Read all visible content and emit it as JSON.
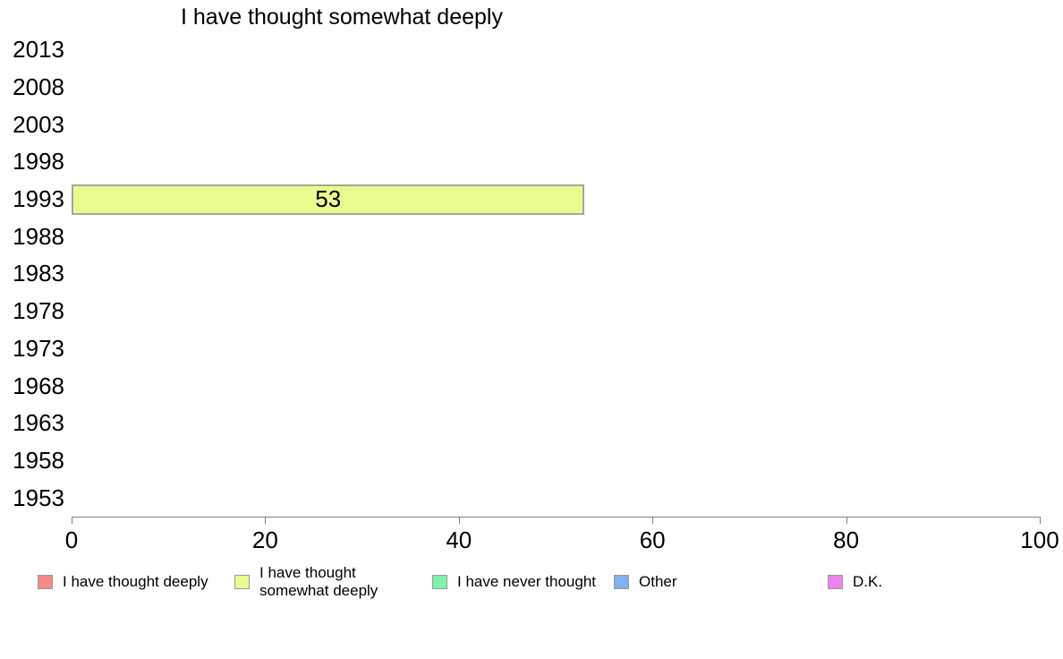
{
  "chart_data": {
    "type": "bar",
    "orientation": "horizontal",
    "title": "I have thought somewhat deeply",
    "categories": [
      "2013",
      "2008",
      "2003",
      "1998",
      "1993",
      "1988",
      "1983",
      "1978",
      "1973",
      "1968",
      "1963",
      "1958",
      "1953"
    ],
    "values": [
      null,
      null,
      null,
      null,
      53,
      null,
      null,
      null,
      null,
      null,
      null,
      null,
      null
    ],
    "xlabel": "",
    "ylabel": "",
    "xlim": [
      0,
      100
    ],
    "x_ticks": [
      0,
      20,
      40,
      60,
      80,
      100
    ],
    "grid": false,
    "bar_color": "#EBFA8F",
    "bar_border_color": "#A6A69A",
    "axis_color": "#808080",
    "legend": {
      "position": "bottom",
      "items": [
        {
          "label": "I have thought deeply",
          "color": "#F48A8A"
        },
        {
          "label": "I have thought\nsomewhat deeply",
          "color": "#EBFA8F"
        },
        {
          "label": "I have never thought",
          "color": "#7FF2A9"
        },
        {
          "label": "Other",
          "color": "#7FB0F0"
        },
        {
          "label": "D.K.",
          "color": "#EE82EE"
        }
      ]
    }
  }
}
